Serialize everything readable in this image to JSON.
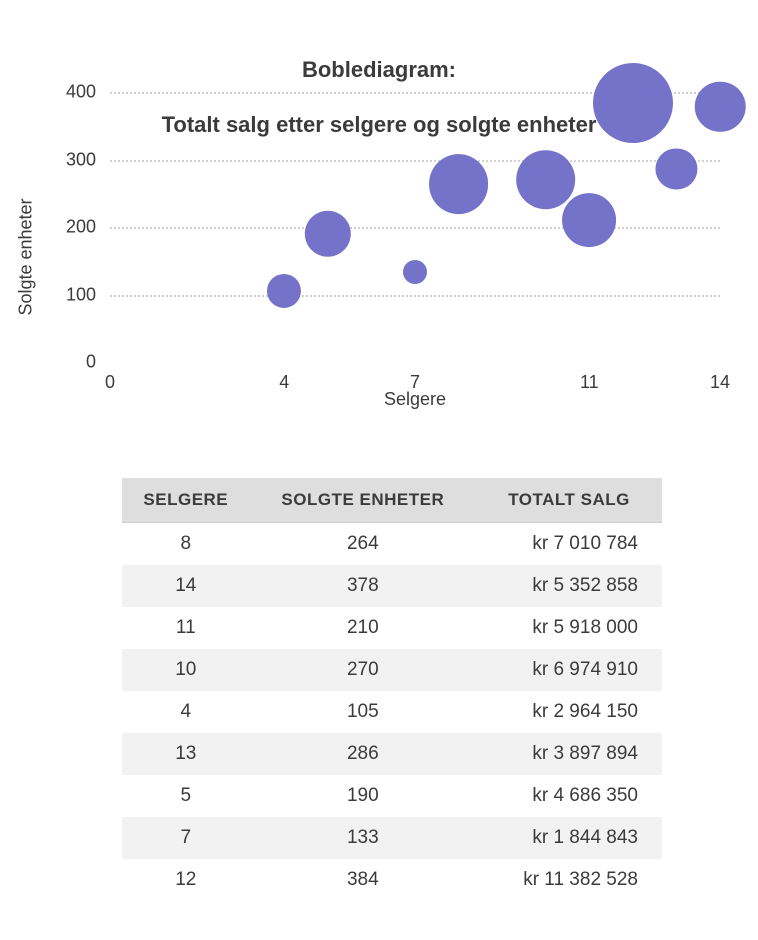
{
  "chart": {
    "type": "bubble",
    "title_line1": "Boblediagram:",
    "title_line2": "Totalt salg etter selgere og solgte enheter",
    "title_fontsize": 22,
    "xlabel": "Selgere",
    "ylabel": "Solgte enheter",
    "label_fontsize": 18,
    "tick_fontsize": 18,
    "xlim": [
      0,
      14
    ],
    "ylim": [
      0,
      400
    ],
    "xticks": [
      0,
      4,
      7,
      11,
      14
    ],
    "yticks": [
      0,
      100,
      200,
      300,
      400
    ],
    "grid_color": "#d0d0d0",
    "grid_style": "dotted",
    "background_color": "#ffffff",
    "bubble_color": "#7573c9",
    "bubble_opacity": 1.0,
    "size_scale_ref": 11382528,
    "size_scale_max_radius": 40,
    "size_scale_min_radius": 12,
    "points": [
      {
        "x": 8,
        "y": 264,
        "size": 7010784
      },
      {
        "x": 14,
        "y": 378,
        "size": 5352858
      },
      {
        "x": 11,
        "y": 210,
        "size": 5918000
      },
      {
        "x": 10,
        "y": 270,
        "size": 6974910
      },
      {
        "x": 4,
        "y": 105,
        "size": 2964150
      },
      {
        "x": 13,
        "y": 286,
        "size": 3897894
      },
      {
        "x": 5,
        "y": 190,
        "size": 4686350
      },
      {
        "x": 7,
        "y": 133,
        "size": 1844843
      },
      {
        "x": 12,
        "y": 384,
        "size": 11382528
      }
    ]
  },
  "table": {
    "header_bg": "#dedede",
    "row_alt_bg": "#f2f2f2",
    "row_bg": "#ffffff",
    "header_fontsize": 17,
    "body_fontsize": 19,
    "text_color": "#3b3b3b",
    "columns": [
      "SELGERE",
      "SOLGTE ENHETER",
      "TOTALT SALG"
    ],
    "column_align": [
      "center",
      "center",
      "right"
    ],
    "rows": [
      [
        "8",
        "264",
        "kr 7 010 784"
      ],
      [
        "14",
        "378",
        "kr 5 352 858"
      ],
      [
        "11",
        "210",
        "kr 5 918 000"
      ],
      [
        "10",
        "270",
        "kr 6 974 910"
      ],
      [
        "4",
        "105",
        "kr 2 964 150"
      ],
      [
        "13",
        "286",
        "kr 3 897 894"
      ],
      [
        "5",
        "190",
        "kr 4 686 350"
      ],
      [
        "7",
        "133",
        "kr 1 844 843"
      ],
      [
        "12",
        "384",
        "kr 11 382 528"
      ]
    ]
  }
}
